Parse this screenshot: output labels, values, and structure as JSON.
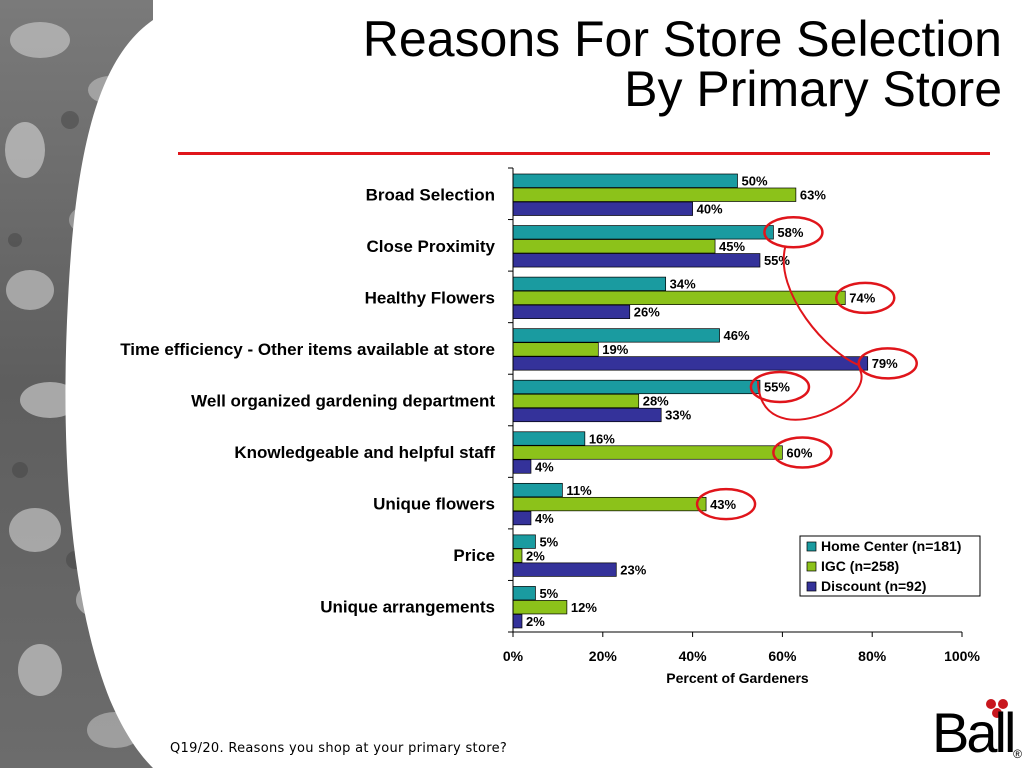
{
  "title": {
    "line1": "Reasons For Store Selection",
    "line2": "By Primary Store"
  },
  "accent_colors": {
    "rule": "#e0151b",
    "highlight_circle": "#e0151b"
  },
  "footnote": "Q19/20. Reasons you shop at your primary store?",
  "logo": {
    "text": "Ball",
    "registered": "®"
  },
  "chart_data": {
    "type": "bar",
    "orientation": "horizontal",
    "categories": [
      "Broad Selection",
      "Close Proximity",
      "Healthy Flowers",
      "Time efficiency - Other items available at store",
      "Well organized gardening department",
      "Knowledgeable and helpful staff",
      "Unique flowers",
      "Price",
      "Unique arrangements"
    ],
    "series": [
      {
        "name": "Home Center (n=181)",
        "color": "#1a9ba0",
        "values": [
          50,
          58,
          34,
          46,
          55,
          16,
          11,
          5,
          5
        ]
      },
      {
        "name": "IGC (n=258)",
        "color": "#8cc21a",
        "values": [
          63,
          45,
          74,
          19,
          28,
          60,
          43,
          2,
          12
        ]
      },
      {
        "name": "Discount (n=92)",
        "color": "#34329a",
        "values": [
          40,
          55,
          26,
          79,
          33,
          4,
          4,
          23,
          2
        ]
      }
    ],
    "xlabel": "Percent of Gardeners",
    "xlim": [
      0,
      100
    ],
    "xticks": [
      "0%",
      "20%",
      "40%",
      "60%",
      "80%",
      "100%"
    ],
    "value_suffix": "%",
    "legend_position": "bottom-right",
    "grid": false,
    "highlighted": [
      {
        "category": 1,
        "series": 0
      },
      {
        "category": 2,
        "series": 1
      },
      {
        "category": 3,
        "series": 2
      },
      {
        "category": 4,
        "series": 0
      },
      {
        "category": 5,
        "series": 1
      },
      {
        "category": 6,
        "series": 1
      }
    ]
  }
}
